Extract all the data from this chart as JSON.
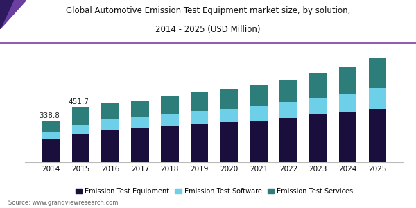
{
  "years": [
    2014,
    2015,
    2016,
    2017,
    2018,
    2019,
    2020,
    2021,
    2022,
    2025
  ],
  "years_all": [
    2014,
    2015,
    2016,
    2017,
    2018,
    2019,
    2020,
    2021,
    2022,
    2023,
    2024,
    2025
  ],
  "equipment": [
    185,
    230,
    265,
    278,
    292,
    310,
    325,
    340,
    362,
    388,
    408,
    432
  ],
  "software": [
    55,
    72,
    82,
    88,
    96,
    108,
    112,
    118,
    128,
    138,
    152,
    172
  ],
  "services": [
    99,
    150,
    133,
    137,
    147,
    155,
    158,
    167,
    182,
    202,
    215,
    246
  ],
  "label_2014": "338.8",
  "label_2015": "451.7",
  "color_equipment": "#1a0f3c",
  "color_software": "#6ecfe8",
  "color_services": "#2d7d7a",
  "title_line1": "Global Automotive Emission Test Equipment market size, by solution,",
  "title_line2": "2014 - 2025 (USD Million)",
  "legend_equipment": "Emission Test Equipment",
  "legend_software": "Emission Test Software",
  "legend_services": "Emission Test Services",
  "source": "Source: www.grandviewresearch.com",
  "bar_width": 0.6,
  "ylim": [
    0,
    880
  ],
  "title_fontsize": 8.5,
  "tick_fontsize": 7.5,
  "legend_fontsize": 7.0,
  "source_fontsize": 6.0,
  "annotation_fontsize": 7.5,
  "bg_color": "#ffffff",
  "spine_color": "#bbbbbb",
  "purple_line_color": "#7b3fa0",
  "logo_color1": "#6b3fa0",
  "logo_color2": "#2e1a5e"
}
